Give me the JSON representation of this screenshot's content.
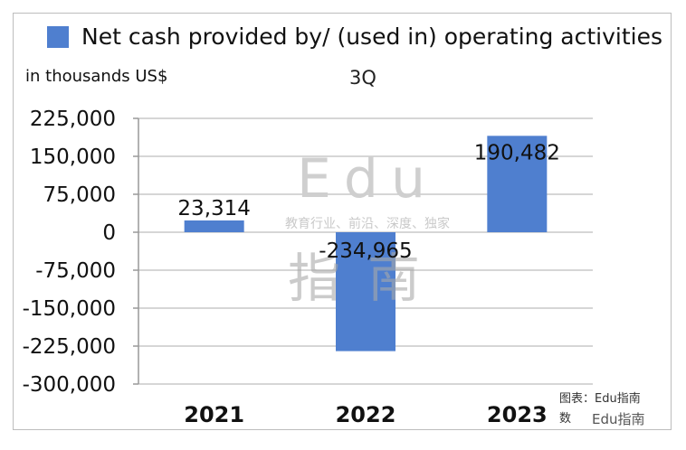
{
  "chart_data": {
    "type": "bar",
    "series": [
      {
        "name": "Net cash provided by/ (used in) operating activities",
        "values": [
          23314,
          -234965,
          190482
        ]
      }
    ],
    "categories": [
      "2021",
      "2022",
      "2023"
    ],
    "data_labels": [
      "23,314",
      "-234,965",
      "190,482"
    ],
    "ylabel": "in thousands US$",
    "subtitle": "3Q",
    "ylim": [
      -300000,
      225000
    ],
    "yticks": [
      225000,
      150000,
      75000,
      0,
      -75000,
      -150000,
      -225000,
      -300000
    ],
    "ytick_labels": [
      "225,000",
      "150,000",
      "75,000",
      "0",
      "-75,000",
      "-150,000",
      "-225,000",
      "-300,000"
    ],
    "grid": true,
    "legend_position": "top",
    "colors": {
      "bar": "#4f7fcf",
      "grid": "#c8c8c8"
    }
  },
  "source": {
    "line1": "图表：Edu指南",
    "line2": "数"
  },
  "watermark": {
    "big": "Edu",
    "tagline": "教育行业、前沿、深度、独家",
    "cn": "指南",
    "overlay": "Edu指南"
  }
}
